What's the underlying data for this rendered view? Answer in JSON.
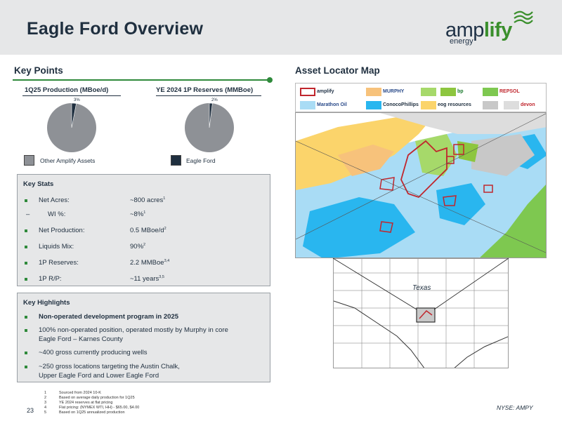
{
  "header": {
    "title": "Eagle Ford Overview",
    "logo": {
      "word_regular": "amp",
      "word_bold": "lify",
      "sub": "energy"
    }
  },
  "key_points": {
    "heading": "Key Points",
    "production": {
      "label": "1Q25 Production (MBoe/d)",
      "eagle_ford_pct": 3,
      "pct_label": "3%"
    },
    "reserves": {
      "label": "YE 2024 1P Reserves (MMBoe)",
      "eagle_ford_pct": 2,
      "pct_label": "2%"
    },
    "legend": [
      {
        "label": "Other Amplify Assets",
        "color": "#8e9196"
      },
      {
        "label": "Eagle Ford",
        "color": "#1f2f3f"
      }
    ]
  },
  "key_stats": {
    "title": "Key Stats",
    "rows": [
      {
        "label": "Net Acres:",
        "value": "~800 acres",
        "sup": "1"
      },
      {
        "label": "WI %:",
        "value": "~8%",
        "sup": "1"
      },
      {
        "label": "Net Production:",
        "value": "0.5 MBoe/d",
        "sup": "2"
      },
      {
        "label": "Liquids Mix:",
        "value": "90%",
        "sup": "2"
      },
      {
        "label": "1P Reserves:",
        "value": "2.2 MMBoe",
        "sup": "3,4"
      },
      {
        "label": "1P R/P:",
        "value": "~11 years",
        "sup": "3,5"
      }
    ]
  },
  "key_highlights": {
    "title": "Key Highlights",
    "bullets": [
      {
        "lines": [
          "Non-operated development program in 2025"
        ]
      },
      {
        "lines": [
          "100% non-operated position, operated mostly by Murphy in core",
          "Eagle Ford – Karnes County"
        ]
      },
      {
        "lines": [
          "~400 gross currently producing wells"
        ]
      },
      {
        "lines": [
          "~250 gross locations targeting the Austin Chalk,",
          "Upper Eagle Ford and Lower Eagle Ford"
        ]
      }
    ]
  },
  "map": {
    "heading": "Asset Locator Map",
    "legend": [
      {
        "label": "amplify",
        "color": "#ffffff",
        "border": "#c0262d"
      },
      {
        "label": "MURPHY",
        "color": "#f7c27b"
      },
      {
        "label": "",
        "color": "#a6d96a"
      },
      {
        "label": "bp",
        "color": "#8dc63f"
      },
      {
        "label": "REPSOL",
        "color": "#7ec850"
      },
      {
        "label": "Marathon Oil",
        "color": "#a9dcf5"
      },
      {
        "label": "ConocoPhillips",
        "color": "#29b6ef"
      },
      {
        "label": "eog resources",
        "color": "#fbd46b"
      },
      {
        "label": "",
        "color": "#c8c8c8"
      },
      {
        "label": "devon",
        "color": "#dddddd"
      }
    ],
    "texas_label": "Texas"
  },
  "footer": {
    "page": "23",
    "ticker": "NYSE: AMPY",
    "footnotes": [
      {
        "num": "1",
        "text": "Sourced from 2024 10-K"
      },
      {
        "num": "2",
        "text": "Based on average daily production for 1Q25"
      },
      {
        "num": "3",
        "text": "YE 2024 reserves at flat pricing"
      },
      {
        "num": "4",
        "text": "Flat pricing: (NYMEX WTI, HH) - $65.00, $4.00"
      },
      {
        "num": "5",
        "text": "Based on 1Q25 annualized production"
      }
    ]
  }
}
